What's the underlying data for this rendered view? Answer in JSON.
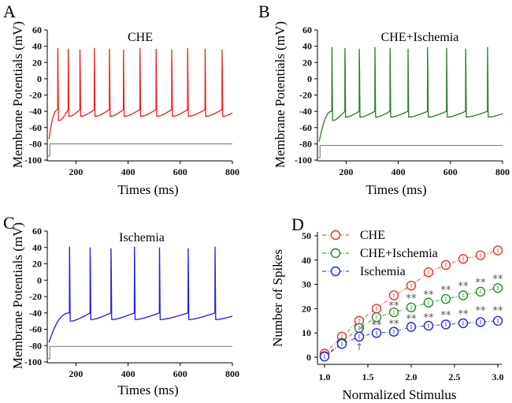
{
  "chart_data": [
    {
      "panel": "A",
      "type": "line",
      "title": "CHE",
      "xlabel": "Times (ms)",
      "ylabel": "Membrane Potentials (mV)",
      "xlim": [
        90,
        800
      ],
      "ylim": [
        -100,
        60
      ],
      "xticks": [
        "200",
        "400",
        "600",
        "800"
      ],
      "xtick_values": [
        200,
        400,
        600,
        800
      ],
      "yticks": [
        "60",
        "40",
        "20",
        "0",
        "-20",
        "-40",
        "-60",
        "-80",
        "-100"
      ],
      "ytick_values": [
        60,
        40,
        20,
        0,
        -20,
        -40,
        -60,
        -80,
        -100
      ],
      "color": "#ee2020",
      "spike_times_ms": [
        130,
        170,
        215,
        270,
        328,
        382,
        445,
        507,
        567,
        628,
        695,
        760
      ],
      "spike_peak_mV": 38,
      "first_trough_mV": -51,
      "trough_mV": -46,
      "prespike_mV": -38,
      "start_mV": -74,
      "stimulus": {
        "color": "#888888",
        "baseline_mV": -95,
        "step_mV": -80,
        "onset_ms": 100
      }
    },
    {
      "panel": "B",
      "type": "line",
      "title": "CHE+Ischemia",
      "xlabel": "Times (ms)",
      "ylabel": "Membrane Potentials (mV)",
      "xlim": [
        90,
        800
      ],
      "ylim": [
        -100,
        60
      ],
      "xticks": [
        "200",
        "400",
        "600",
        "800"
      ],
      "xtick_values": [
        200,
        400,
        600,
        800
      ],
      "yticks": [
        "60",
        "40",
        "20",
        "0",
        "-20",
        "-40",
        "-60",
        "-80",
        "-100"
      ],
      "ytick_values": [
        60,
        40,
        20,
        0,
        -20,
        -40,
        -60,
        -80,
        -100
      ],
      "color": "#2a7a2a",
      "spike_times_ms": [
        145,
        195,
        250,
        310,
        368,
        437,
        512,
        585,
        658,
        742
      ],
      "spike_peak_mV": 39,
      "first_trough_mV": -51,
      "trough_mV": -47,
      "prespike_mV": -40,
      "start_mV": -77,
      "stimulus": {
        "color": "#888888",
        "baseline_mV": -97,
        "step_mV": -82,
        "onset_ms": 100
      }
    },
    {
      "panel": "C",
      "type": "line",
      "title": "Ischemia",
      "xlabel": "Times (ms)",
      "ylabel": "Membrane Potentials (mV)",
      "xlim": [
        90,
        800
      ],
      "ylim": [
        -100,
        60
      ],
      "xticks": [
        "200",
        "400",
        "600",
        "800"
      ],
      "xtick_values": [
        200,
        400,
        600,
        800
      ],
      "yticks": [
        "60",
        "40",
        "20",
        "0",
        "-20",
        "-40",
        "-60",
        "-80",
        "-100"
      ],
      "ytick_values": [
        60,
        40,
        20,
        0,
        -20,
        -40,
        -60,
        -80,
        -100
      ],
      "color": "#1a1aee",
      "spike_times_ms": [
        175,
        254,
        334,
        424,
        520,
        630,
        733
      ],
      "spike_peak_mV": 41,
      "first_trough_mV": -50,
      "trough_mV": -48,
      "prespike_mV": -40,
      "start_mV": -76,
      "stimulus": {
        "color": "#888888",
        "baseline_mV": -96,
        "step_mV": -81,
        "onset_ms": 100
      }
    },
    {
      "panel": "D",
      "type": "line",
      "title": "",
      "xlabel": "Normalized Stimulus",
      "ylabel": "Number of Spikes",
      "xlim": [
        0.95,
        3.05
      ],
      "ylim": [
        -1,
        52
      ],
      "xticks": [
        "1.0",
        "1.5",
        "2.0",
        "2.5",
        "3.0"
      ],
      "xtick_values": [
        1.0,
        1.5,
        2.0,
        2.5,
        3.0
      ],
      "yticks": [
        "0",
        "10",
        "20",
        "30",
        "40",
        "50"
      ],
      "ytick_values": [
        0,
        10,
        20,
        30,
        40,
        50
      ],
      "legend_position": "top-left",
      "x": [
        1.0,
        1.2,
        1.4,
        1.6,
        1.8,
        2.0,
        2.2,
        2.4,
        2.6,
        2.8,
        3.0
      ],
      "series": [
        {
          "name": "CHE",
          "color": "#ee3030",
          "values": [
            1.5,
            8.5,
            15,
            20,
            25.5,
            29.5,
            35,
            38,
            40.5,
            42,
            44
          ]
        },
        {
          "name": "CHE+Ischemia",
          "color": "#2a8a2a",
          "values": [
            0.5,
            6,
            12,
            16.5,
            18.5,
            20.5,
            22.5,
            24,
            25.5,
            27,
            28.5
          ]
        },
        {
          "name": "Ischemia",
          "color": "#2020ee",
          "values": [
            0.3,
            5.5,
            8.5,
            10,
            10.5,
            12.5,
            13,
            13.5,
            14,
            14.5,
            15
          ]
        }
      ],
      "annotations": [
        {
          "text": "*",
          "x": 1.43,
          "y": 11.5
        },
        {
          "text": "**",
          "x": 1.6,
          "y": 13.5
        },
        {
          "text": "**",
          "x": 1.8,
          "y": 21.5
        },
        {
          "text": "**",
          "x": 1.8,
          "y": 14
        },
        {
          "text": "**",
          "x": 2.0,
          "y": 24.5
        },
        {
          "text": "**",
          "x": 2.0,
          "y": 16
        },
        {
          "text": "**",
          "x": 2.2,
          "y": 26
        },
        {
          "text": "**",
          "x": 2.2,
          "y": 16.5
        },
        {
          "text": "**",
          "x": 2.4,
          "y": 28
        },
        {
          "text": "**",
          "x": 2.4,
          "y": 17.5
        },
        {
          "text": "**",
          "x": 2.6,
          "y": 29.5
        },
        {
          "text": "**",
          "x": 2.6,
          "y": 18
        },
        {
          "text": "**",
          "x": 2.8,
          "y": 31
        },
        {
          "text": "**",
          "x": 2.8,
          "y": 19.5
        },
        {
          "text": "**",
          "x": 3.0,
          "y": 32.5
        },
        {
          "text": "**",
          "x": 3.0,
          "y": 19.5
        },
        {
          "text": "↑",
          "x": 1.4,
          "y": 4.5
        }
      ]
    }
  ]
}
